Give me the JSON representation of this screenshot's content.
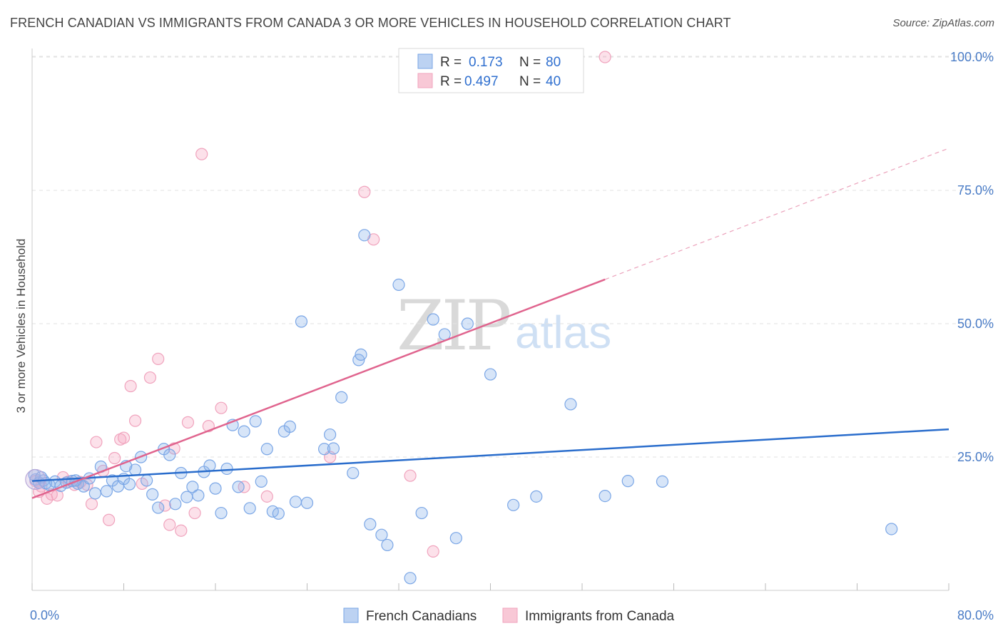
{
  "title": "FRENCH CANADIAN VS IMMIGRANTS FROM CANADA 3 OR MORE VEHICLES IN HOUSEHOLD CORRELATION CHART",
  "source": "Source: ZipAtlas.com",
  "watermark": {
    "zip": "ZIP",
    "atlas": "atlas"
  },
  "legend_box": {
    "rows": [
      {
        "r_label": "R =",
        "r_value": "0.173",
        "n_label": "N =",
        "n_value": "80"
      },
      {
        "r_label": "R =",
        "r_value": "0.497",
        "n_label": "N =",
        "n_value": "40"
      }
    ]
  },
  "bottom_legend": [
    "French Canadians",
    "Immigrants from Canada"
  ],
  "chart_data": {
    "type": "scatter",
    "title": "FRENCH CANADIAN VS IMMIGRANTS FROM CANADA 3 OR MORE VEHICLES IN HOUSEHOLD CORRELATION CHART",
    "xlabel": "",
    "ylabel": "3 or more Vehicles in Household",
    "xlim": [
      0,
      80
    ],
    "ylim": [
      0,
      100
    ],
    "x_tick_labels": [
      "0.0%",
      "80.0%"
    ],
    "y_tick_labels": [
      "100.0%",
      "75.0%",
      "50.0%",
      "25.0%"
    ],
    "y_ticks": [
      100,
      75,
      50,
      25
    ],
    "grid": true,
    "legend_position": "top-center",
    "colors": {
      "blue": "#7aa6e6",
      "blue_line": "#2a6dcc",
      "pink": "#f0a3bd",
      "pink_line": "#e0648e"
    },
    "series": [
      {
        "name": "French Canadians",
        "r": 0.173,
        "n": 80,
        "trend": {
          "x0": 0,
          "y0": 20.5,
          "x1": 80,
          "y1": 30.2
        },
        "points": [
          [
            0.3,
            20.8
          ],
          [
            0.6,
            20.2
          ],
          [
            1.0,
            20.6
          ],
          [
            1.5,
            19.8
          ],
          [
            2.0,
            20.4
          ],
          [
            2.5,
            19.6
          ],
          [
            3.0,
            20.2
          ],
          [
            3.5,
            20.5
          ],
          [
            4.0,
            20.0
          ],
          [
            4.5,
            19.5
          ],
          [
            5.0,
            21.0
          ],
          [
            5.5,
            18.2
          ],
          [
            6.0,
            23.2
          ],
          [
            6.5,
            18.6
          ],
          [
            7.0,
            20.6
          ],
          [
            7.5,
            19.5
          ],
          [
            8.0,
            20.9
          ],
          [
            8.5,
            19.9
          ],
          [
            9.0,
            22.6
          ],
          [
            9.5,
            25.0
          ],
          [
            10.0,
            20.6
          ],
          [
            10.5,
            18.0
          ],
          [
            11.0,
            15.5
          ],
          [
            11.5,
            26.5
          ],
          [
            12.0,
            25.4
          ],
          [
            12.5,
            16.2
          ],
          [
            13.0,
            22.0
          ],
          [
            13.5,
            17.5
          ],
          [
            14.0,
            19.4
          ],
          [
            14.5,
            17.8
          ],
          [
            15.0,
            22.2
          ],
          [
            15.5,
            23.4
          ],
          [
            16.0,
            19.1
          ],
          [
            16.5,
            14.5
          ],
          [
            17.0,
            22.8
          ],
          [
            17.5,
            31.0
          ],
          [
            18.0,
            19.4
          ],
          [
            18.5,
            29.8
          ],
          [
            19.0,
            15.4
          ],
          [
            19.5,
            31.7
          ],
          [
            20.0,
            20.4
          ],
          [
            20.5,
            26.5
          ],
          [
            21.0,
            14.8
          ],
          [
            21.5,
            14.4
          ],
          [
            22.0,
            29.8
          ],
          [
            22.5,
            30.7
          ],
          [
            23.0,
            16.6
          ],
          [
            23.5,
            50.4
          ],
          [
            24.0,
            16.4
          ],
          [
            25.5,
            26.5
          ],
          [
            26.0,
            29.2
          ],
          [
            26.3,
            26.6
          ],
          [
            27.0,
            36.2
          ],
          [
            28.0,
            22.0
          ],
          [
            28.5,
            43.2
          ],
          [
            28.7,
            44.2
          ],
          [
            29.0,
            66.6
          ],
          [
            29.5,
            12.4
          ],
          [
            30.5,
            10.4
          ],
          [
            31.0,
            8.5
          ],
          [
            32.0,
            57.3
          ],
          [
            33.0,
            2.3
          ],
          [
            34.0,
            14.5
          ],
          [
            35.0,
            50.8
          ],
          [
            36.0,
            48.0
          ],
          [
            37.0,
            9.8
          ],
          [
            38.0,
            50.0
          ],
          [
            40.0,
            40.5
          ],
          [
            42.0,
            16.0
          ],
          [
            44.0,
            17.6
          ],
          [
            47.0,
            34.9
          ],
          [
            50.0,
            17.7
          ],
          [
            52.0,
            20.5
          ],
          [
            55.0,
            20.4
          ],
          [
            75.0,
            11.5
          ],
          [
            0.2,
            21.6
          ],
          [
            0.8,
            21.2
          ],
          [
            1.2,
            20.1
          ],
          [
            3.8,
            20.6
          ],
          [
            8.2,
            23.3
          ]
        ]
      },
      {
        "name": "Immigrants from Canada",
        "r": 0.497,
        "n": 40,
        "trend_solid": {
          "x0": 0,
          "y0": 17.3,
          "x1": 50,
          "y1": 58.3
        },
        "trend_dashed": {
          "x0": 50,
          "y0": 58.3,
          "x1": 80,
          "y1": 82.9
        },
        "points": [
          [
            0.3,
            20.5
          ],
          [
            0.8,
            19.5
          ],
          [
            1.3,
            17.2
          ],
          [
            1.7,
            18.0
          ],
          [
            2.2,
            17.8
          ],
          [
            2.7,
            21.2
          ],
          [
            3.2,
            20.4
          ],
          [
            3.7,
            19.8
          ],
          [
            4.2,
            20.3
          ],
          [
            4.8,
            19.8
          ],
          [
            5.2,
            16.2
          ],
          [
            5.6,
            27.8
          ],
          [
            6.2,
            22.4
          ],
          [
            6.7,
            13.2
          ],
          [
            7.2,
            24.8
          ],
          [
            7.7,
            28.3
          ],
          [
            8.0,
            28.6
          ],
          [
            8.6,
            38.3
          ],
          [
            9.0,
            31.8
          ],
          [
            9.6,
            20.0
          ],
          [
            10.3,
            39.9
          ],
          [
            11.0,
            43.4
          ],
          [
            11.6,
            15.9
          ],
          [
            12.0,
            12.3
          ],
          [
            12.4,
            26.6
          ],
          [
            13.0,
            11.2
          ],
          [
            13.6,
            31.5
          ],
          [
            14.2,
            14.5
          ],
          [
            14.8,
            81.8
          ],
          [
            15.4,
            30.8
          ],
          [
            16.5,
            34.2
          ],
          [
            18.5,
            19.4
          ],
          [
            20.5,
            17.6
          ],
          [
            26.0,
            25.0
          ],
          [
            29.0,
            74.7
          ],
          [
            29.8,
            65.8
          ],
          [
            33.0,
            21.5
          ],
          [
            35.0,
            7.3
          ],
          [
            50.0,
            100.0
          ],
          [
            0.6,
            18.5
          ]
        ]
      }
    ]
  }
}
